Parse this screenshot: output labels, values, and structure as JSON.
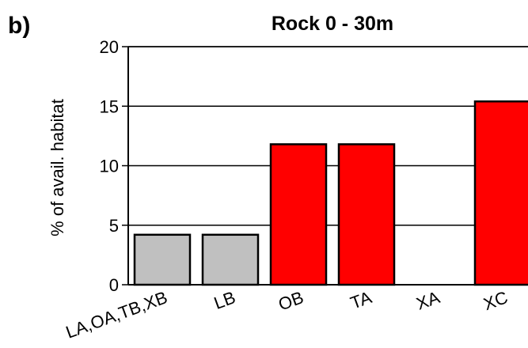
{
  "panel_label": "b)",
  "chart_data": {
    "type": "bar",
    "title": "Rock 0 - 30m",
    "xlabel": "",
    "ylabel": "% of avail. habitat",
    "ylim": [
      0,
      20
    ],
    "yticks": [
      "0",
      "5",
      "10",
      "15",
      "20"
    ],
    "grid": true,
    "categories": [
      "LA,OA,TB,XB",
      "LB",
      "OB",
      "TA",
      "XA",
      "XC"
    ],
    "values": [
      4.2,
      4.2,
      11.8,
      11.8,
      0,
      15.4
    ],
    "colors": [
      "#c0c0c0",
      "#c0c0c0",
      "#ff0000",
      "#ff0000",
      "#ff0000",
      "#ff0000"
    ]
  }
}
